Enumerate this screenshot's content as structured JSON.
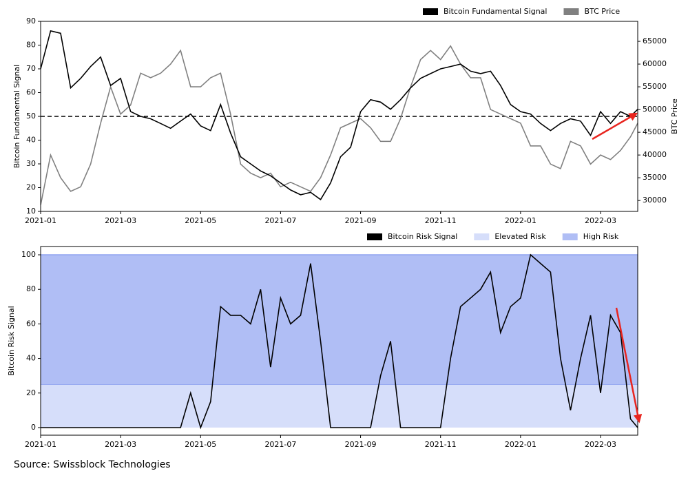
{
  "chart_data": [
    {
      "type": "line",
      "ylabel": "Bitcoin Fundamental Signal",
      "y2label": "BTC Price",
      "x": [
        0,
        0.25,
        0.5,
        0.75,
        1,
        1.25,
        1.5,
        1.75,
        2,
        2.25,
        2.5,
        2.75,
        3,
        3.25,
        3.5,
        3.75,
        4,
        4.25,
        4.5,
        4.75,
        5,
        5.25,
        5.5,
        5.75,
        6,
        6.25,
        6.5,
        6.75,
        7,
        7.25,
        7.5,
        7.75,
        8,
        8.25,
        8.5,
        8.75,
        9,
        9.25,
        9.5,
        9.75,
        10,
        10.25,
        10.5,
        10.75,
        11,
        11.25,
        11.5,
        11.75,
        12,
        12.25,
        12.5,
        12.75,
        13,
        13.25,
        13.5,
        13.75,
        14,
        14.25,
        14.5,
        14.75,
        14.93
      ],
      "xlim": [
        0,
        14.93
      ],
      "xticks": [
        {
          "value": 0,
          "label": "2021-01"
        },
        {
          "value": 2,
          "label": "2021-03"
        },
        {
          "value": 4,
          "label": "2021-05"
        },
        {
          "value": 6,
          "label": "2021-07"
        },
        {
          "value": 8,
          "label": "2021-09"
        },
        {
          "value": 10,
          "label": "2021-11"
        },
        {
          "value": 12,
          "label": "2022-01"
        },
        {
          "value": 14,
          "label": "2022-03"
        }
      ],
      "ylim": [
        10,
        90
      ],
      "yticks": [
        10,
        20,
        30,
        40,
        50,
        60,
        70,
        80,
        90
      ],
      "y2lim": [
        27600,
        69400
      ],
      "y2ticks": [
        30000,
        35000,
        40000,
        45000,
        50000,
        55000,
        60000,
        65000
      ],
      "hline": 50,
      "series": [
        {
          "name": "Bitcoin Fundamental Signal",
          "color": "#000000",
          "values": [
            70,
            86,
            85,
            62,
            66,
            71,
            75,
            63,
            66,
            52,
            50,
            49,
            47,
            45,
            48,
            51,
            46,
            44,
            55,
            43,
            33,
            30,
            27,
            25,
            22,
            19,
            17,
            18,
            15,
            22,
            33,
            37,
            52,
            57,
            56,
            53,
            57,
            62,
            66,
            68,
            70,
            71,
            72,
            69,
            68,
            69,
            63,
            55,
            52,
            51,
            47,
            44,
            47,
            49,
            48,
            42,
            52,
            47,
            52,
            50,
            53
          ]
        },
        {
          "name": "BTC Price",
          "color": "#808080",
          "axis": "y2",
          "values": [
            29000,
            40000,
            35000,
            32000,
            33000,
            38000,
            47000,
            55000,
            49000,
            51000,
            58000,
            57000,
            58000,
            60000,
            63000,
            55000,
            55000,
            57000,
            58000,
            49000,
            38000,
            36000,
            35000,
            36000,
            33000,
            34000,
            33000,
            32000,
            35000,
            40000,
            46000,
            47000,
            48000,
            46000,
            43000,
            43000,
            48000,
            55000,
            61000,
            63000,
            61000,
            64000,
            60000,
            57000,
            57000,
            50000,
            49000,
            48000,
            47000,
            42000,
            42000,
            38000,
            37000,
            43000,
            42000,
            38000,
            40000,
            39000,
            41000,
            44000,
            47000
          ]
        }
      ]
    },
    {
      "type": "line",
      "ylabel": "Bitcoin Risk Signal",
      "x": [
        0,
        0.25,
        0.5,
        0.75,
        1,
        1.25,
        1.5,
        1.75,
        2,
        2.25,
        2.5,
        2.75,
        3,
        3.25,
        3.5,
        3.75,
        4,
        4.25,
        4.5,
        4.75,
        5,
        5.25,
        5.5,
        5.75,
        6,
        6.25,
        6.5,
        6.75,
        7,
        7.25,
        7.5,
        7.75,
        8,
        8.25,
        8.5,
        8.75,
        9,
        9.25,
        9.5,
        9.75,
        10,
        10.25,
        10.5,
        10.75,
        11,
        11.25,
        11.5,
        11.75,
        12,
        12.25,
        12.5,
        12.75,
        13,
        13.25,
        13.5,
        13.75,
        14,
        14.25,
        14.5,
        14.75,
        14.93
      ],
      "xlim": [
        0,
        14.93
      ],
      "xticks": [
        {
          "value": 0,
          "label": "2021-01"
        },
        {
          "value": 2,
          "label": "2021-03"
        },
        {
          "value": 4,
          "label": "2021-05"
        },
        {
          "value": 6,
          "label": "2021-07"
        },
        {
          "value": 8,
          "label": "2021-09"
        },
        {
          "value": 10,
          "label": "2021-11"
        },
        {
          "value": 12,
          "label": "2022-01"
        },
        {
          "value": 14,
          "label": "2022-03"
        }
      ],
      "ylim": [
        -4.4,
        104.8
      ],
      "yticks": [
        0,
        20,
        40,
        60,
        80,
        100
      ],
      "bands": [
        {
          "name": "Elevated Risk",
          "color": "#d6defa",
          "range": [
            0,
            25
          ]
        },
        {
          "name": "High Risk",
          "color": "#b0bef5",
          "range": [
            25,
            100
          ]
        }
      ],
      "series": [
        {
          "name": "Bitcoin Risk Signal",
          "color": "#000000",
          "values": [
            0,
            0,
            0,
            0,
            0,
            0,
            0,
            0,
            0,
            0,
            0,
            0,
            0,
            0,
            0,
            20,
            0,
            15,
            70,
            65,
            65,
            60,
            80,
            35,
            75,
            60,
            65,
            95,
            50,
            0,
            0,
            0,
            0,
            0,
            30,
            50,
            0,
            0,
            0,
            0,
            0,
            40,
            70,
            75,
            80,
            90,
            55,
            70,
            75,
            100,
            95,
            90,
            40,
            10,
            40,
            65,
            20,
            65,
            55,
            5,
            0
          ]
        }
      ]
    }
  ],
  "source": "Source: Swissblock Technologies"
}
